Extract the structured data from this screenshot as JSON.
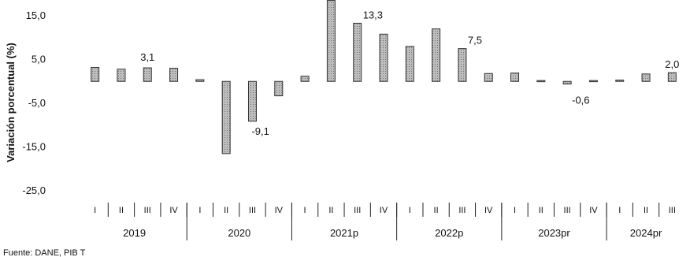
{
  "chart_data": {
    "type": "bar",
    "ylabel": "Variación porcentual (%)",
    "ylim": [
      -25,
      18
    ],
    "yticks": [
      "15,0",
      "5,0",
      "-5,0",
      "-15,0",
      "-25,0"
    ],
    "ytick_values": [
      15,
      5,
      -5,
      -15,
      -25
    ],
    "categories": [
      "I",
      "II",
      "III",
      "IV",
      "I",
      "II",
      "III",
      "IV",
      "I",
      "II",
      "III",
      "IV",
      "I",
      "II",
      "III",
      "IV",
      "I",
      "II",
      "III",
      "IV",
      "I",
      "II",
      "III"
    ],
    "years": [
      {
        "label": "2019",
        "quarters": 4
      },
      {
        "label": "2020",
        "quarters": 4
      },
      {
        "label": "2021p",
        "quarters": 4
      },
      {
        "label": "2022p",
        "quarters": 4
      },
      {
        "label": "2023pr",
        "quarters": 4
      },
      {
        "label": "2024pr",
        "quarters": 3
      }
    ],
    "values": [
      3.2,
      2.8,
      3.1,
      3.0,
      0.4,
      -16.5,
      -9.1,
      -3.3,
      1.2,
      18.5,
      13.3,
      10.8,
      8.0,
      12.0,
      7.5,
      1.8,
      1.9,
      0.2,
      -0.6,
      0.2,
      0.3,
      1.7,
      2.0
    ],
    "data_labels": [
      {
        "index": 2,
        "text": "3,1"
      },
      {
        "index": 6,
        "text": "-9,1"
      },
      {
        "index": 10,
        "text": "13,3"
      },
      {
        "index": 14,
        "text": "7,5"
      },
      {
        "index": 18,
        "text": "-0,6"
      },
      {
        "index": 22,
        "text": "2,0"
      }
    ],
    "grid": false,
    "legend": "none",
    "bar_color": "#a9a9a9"
  },
  "footer": {
    "source": "Fuente: DANE, PIB T"
  }
}
